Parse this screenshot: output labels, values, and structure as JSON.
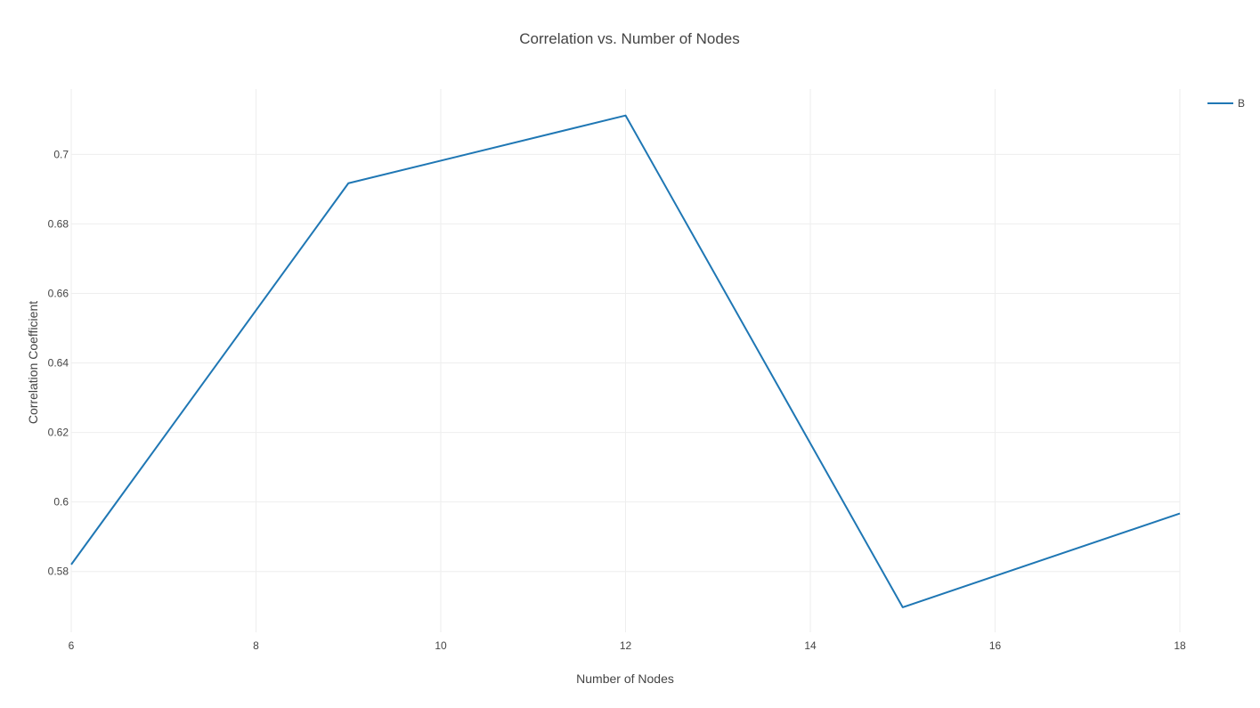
{
  "chart_data": {
    "type": "line",
    "title": "Correlation vs. Number of Nodes",
    "xlabel": "Number of Nodes",
    "ylabel": "Correlation Coefficient",
    "xlim": [
      6,
      18
    ],
    "ylim": [
      0.5625,
      0.7188
    ],
    "x_ticks": [
      6,
      8,
      10,
      12,
      14,
      16,
      18
    ],
    "x_tick_labels": [
      "6",
      "8",
      "10",
      "12",
      "14",
      "16",
      "18"
    ],
    "y_ticks": [
      0.58,
      0.6,
      0.62,
      0.64,
      0.66,
      0.68,
      0.7
    ],
    "y_tick_labels": [
      "0.58",
      "0.6",
      "0.62",
      "0.64",
      "0.66",
      "0.68",
      "0.7"
    ],
    "grid": true,
    "legend_position": "top-right",
    "series": [
      {
        "name": "B",
        "color": "#1f77b4",
        "x": [
          6,
          9,
          12,
          15,
          18
        ],
        "y": [
          0.582,
          0.6917,
          0.7112,
          0.5697,
          0.5967
        ]
      }
    ]
  }
}
